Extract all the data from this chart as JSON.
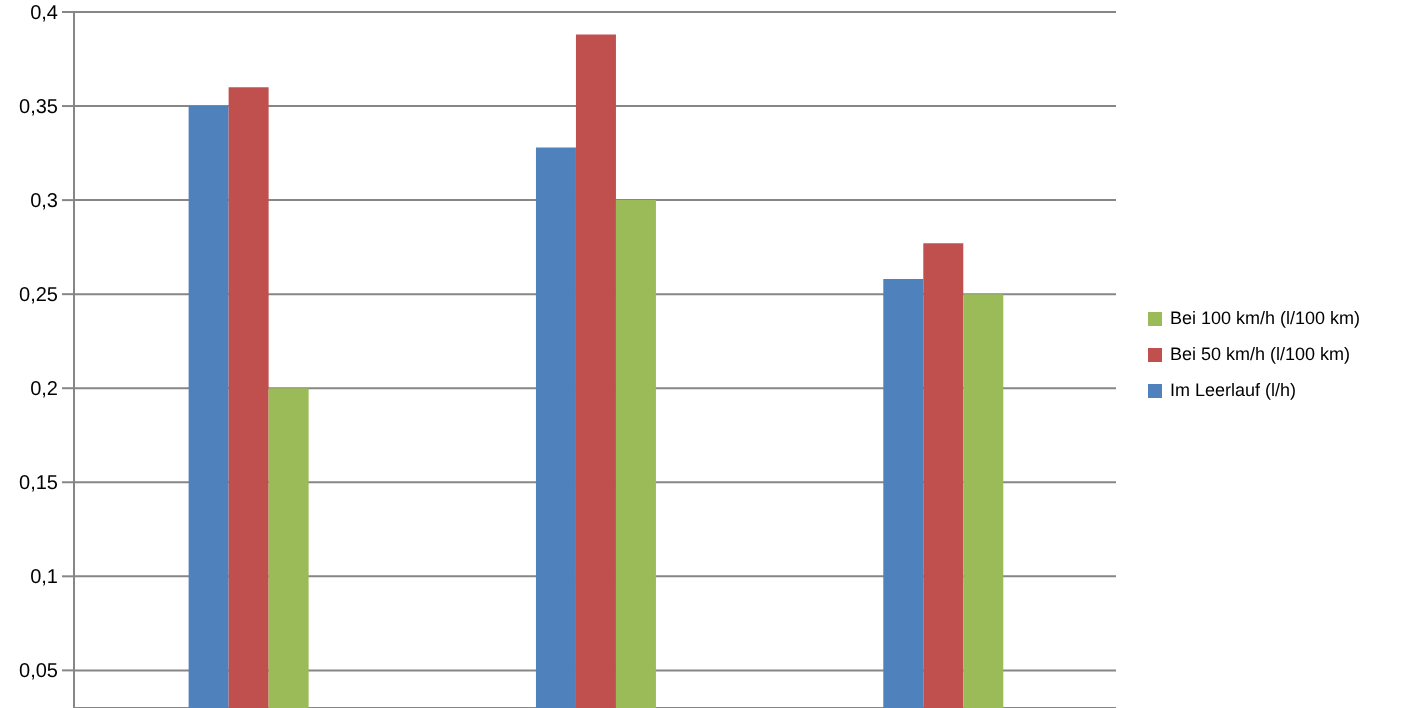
{
  "chart_data": {
    "type": "bar",
    "categories": [
      null,
      null,
      null
    ],
    "series": [
      {
        "name": "Im Leerlauf (l/h)",
        "color": "#4f81bd",
        "values": [
          0.35,
          0.328,
          0.258
        ]
      },
      {
        "name": "Bei 50 km/h  (l/100 km)",
        "color": "#c0504d",
        "values": [
          0.36,
          0.388,
          0.277
        ]
      },
      {
        "name": "Bei 100 km/h  (l/100 km)",
        "color": "#9bbb59",
        "values": [
          0.2,
          0.3,
          0.25
        ]
      }
    ],
    "ylim": [
      0.03,
      0.4
    ],
    "yticks": [
      {
        "value": 0.05,
        "label": "0,05"
      },
      {
        "value": 0.1,
        "label": "0,1"
      },
      {
        "value": 0.15,
        "label": "0,15"
      },
      {
        "value": 0.2,
        "label": "0,2"
      },
      {
        "value": 0.25,
        "label": "0,25"
      },
      {
        "value": 0.3,
        "label": "0,3"
      },
      {
        "value": 0.35,
        "label": "0,35"
      },
      {
        "value": 0.4,
        "label": "0,4"
      }
    ],
    "grid": "y",
    "legend": "right"
  }
}
